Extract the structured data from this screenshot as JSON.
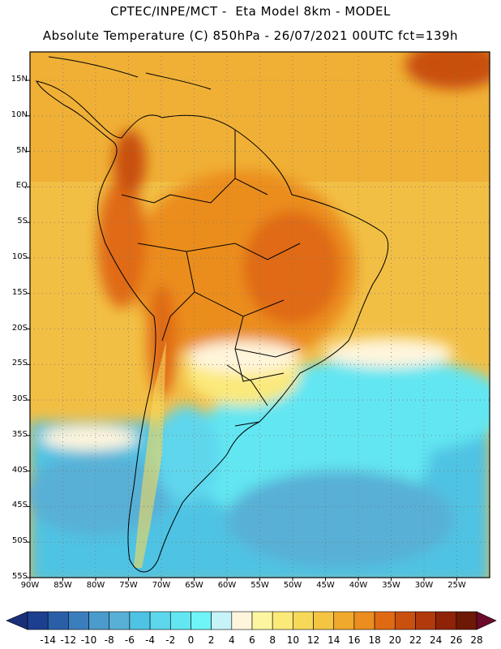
{
  "header": {
    "line1": "CPTEC/INPE/MCT -  Eta Model 8km - MODEL",
    "line2": "Absolute Temperature (C) 850hPa - 26/07/2021 00UTC fct=139h"
  },
  "map": {
    "lon_range": [
      "90W",
      "20W"
    ],
    "lat_range": [
      "55S",
      "19N"
    ],
    "lat_ticks": [
      "15N",
      "10N",
      "5N",
      "EQ",
      "5S",
      "10S",
      "15S",
      "20S",
      "25S",
      "30S",
      "35S",
      "40S",
      "45S",
      "50S",
      "55S"
    ],
    "lon_ticks": [
      "90W",
      "85W",
      "80W",
      "75W",
      "70W",
      "65W",
      "60W",
      "55W",
      "50W",
      "45W",
      "40W",
      "35W",
      "30W",
      "25W"
    ],
    "grid": "dotted"
  },
  "colorbar": {
    "labels": [
      "-14",
      "-12",
      "-10",
      "-8",
      "-6",
      "-4",
      "-2",
      "0",
      "2",
      "4",
      "6",
      "8",
      "10",
      "12",
      "14",
      "16",
      "18",
      "20",
      "22",
      "24",
      "26",
      "28"
    ],
    "colors": [
      "#1d3f8f",
      "#2a5fa8",
      "#3a7ebd",
      "#4b9bcc",
      "#58b0d6",
      "#4fc3e3",
      "#5ed6ec",
      "#62e6f2",
      "#6ff5f7",
      "#c6f3f8",
      "#fff5dc",
      "#fdf5a0",
      "#fbe97a",
      "#f7d95a",
      "#f4c443",
      "#f0a92c",
      "#eb8d1f",
      "#e06a14",
      "#c9500e",
      "#b1390b",
      "#8f2308",
      "#6e1806"
    ],
    "under_color": "#1a2f7a",
    "over_color": "#6b0a2a"
  }
}
